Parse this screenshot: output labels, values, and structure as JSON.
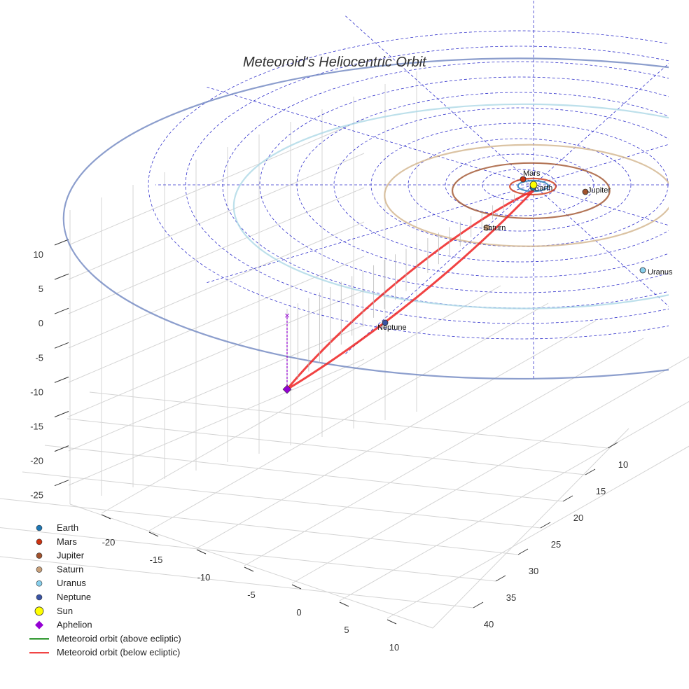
{
  "chart_data": {
    "type": "scatter3d",
    "title": "Meteoroid's Heliocentric Orbit",
    "axes": {
      "x_ticks": [
        -20,
        -15,
        -10,
        -5,
        0,
        5,
        10
      ],
      "y_ticks": [
        10,
        15,
        20,
        25,
        30,
        35,
        40
      ],
      "z_ticks": [
        10,
        5,
        0,
        -5,
        -10,
        -15,
        -20,
        -25
      ],
      "xlim": [
        -25,
        12
      ],
      "ylim": [
        6,
        44
      ],
      "zlim": [
        -27,
        12
      ],
      "grid": true
    },
    "planets": [
      {
        "name": "Earth",
        "color": "#1f77b4",
        "orbit_color": "#1f77b4"
      },
      {
        "name": "Mars",
        "color": "#cc3311",
        "orbit_color": "#cc3311"
      },
      {
        "name": "Jupiter",
        "color": "#a0522d",
        "orbit_color": "#a0522d"
      },
      {
        "name": "Saturn",
        "color": "#c8a07a",
        "orbit_color": "#d2b48c"
      },
      {
        "name": "Uranus",
        "color": "#87ceeb",
        "orbit_color": "#add8e6"
      },
      {
        "name": "Neptune",
        "color": "#3a53a4",
        "orbit_color": "#6f86c0"
      }
    ],
    "legend": [
      {
        "label": "Earth",
        "marker": "circle",
        "color": "#1f77b4"
      },
      {
        "label": "Mars",
        "marker": "circle",
        "color": "#cc3311"
      },
      {
        "label": "Jupiter",
        "marker": "circle",
        "color": "#a0522d"
      },
      {
        "label": "Saturn",
        "marker": "circle",
        "color": "#c8a07a"
      },
      {
        "label": "Uranus",
        "marker": "circle",
        "color": "#87ceeb"
      },
      {
        "label": "Neptune",
        "marker": "circle",
        "color": "#3a53a4"
      },
      {
        "label": "Sun",
        "marker": "circle-large",
        "color": "#ffff00"
      },
      {
        "label": "Aphelion",
        "marker": "diamond",
        "color": "#9400d3"
      },
      {
        "label": "Meteoroid orbit (above ecliptic)",
        "marker": "line",
        "color": "#008000"
      },
      {
        "label": "Meteoroid orbit (below ecliptic)",
        "marker": "line",
        "color": "#ee2222"
      }
    ],
    "legend_position": "bottom-left",
    "colors": {
      "ecliptic_grid": "#3333cc",
      "axis_grid": "#d4d4d4",
      "meteoroid_below": "#ee2222",
      "aphelion": "#9400d3"
    }
  }
}
